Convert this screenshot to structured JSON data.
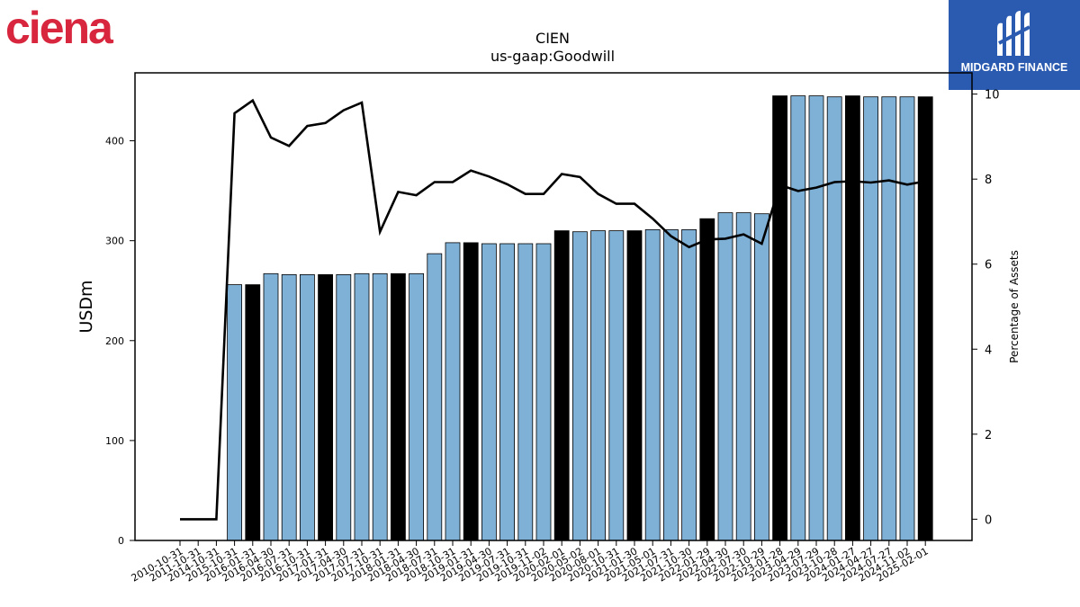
{
  "branding": {
    "company_logo_text": "ciena",
    "company_logo_color": "#d7263d",
    "publisher_logo_text": "MIDGARD FINANCE",
    "publisher_logo_color": "#2b5bb0"
  },
  "chart_data": {
    "type": "bar",
    "title": "CIEN",
    "subtitle": "us-gaap:Goodwill",
    "ylabel": "USDm",
    "y2label": "Percentage of Assets",
    "ylim": [
      0,
      468
    ],
    "y2lim": [
      -0.5,
      10.5
    ],
    "yticks": [
      0,
      100,
      200,
      300,
      400
    ],
    "y2ticks": [
      0,
      2,
      4,
      6,
      8,
      10
    ],
    "colors": {
      "bar": "#7fb0d6",
      "bar_highlight": "#000000",
      "line": "#000000"
    },
    "categories": [
      "2010-10-31",
      "2011-10-31",
      "2014-10-31",
      "2015-10-31",
      "2016-01-31",
      "2016-04-30",
      "2016-07-31",
      "2016-10-31",
      "2017-01-31",
      "2017-04-30",
      "2017-07-31",
      "2017-10-31",
      "2018-01-31",
      "2018-04-30",
      "2018-07-31",
      "2018-10-31",
      "2019-01-31",
      "2019-04-30",
      "2019-07-31",
      "2019-10-31",
      "2019-11-02",
      "2020-02-01",
      "2020-05-02",
      "2020-08-01",
      "2020-10-31",
      "2021-01-30",
      "2021-05-01",
      "2021-07-31",
      "2021-10-30",
      "2022-01-29",
      "2022-04-30",
      "2022-07-30",
      "2022-10-29",
      "2023-01-28",
      "2023-04-29",
      "2023-07-29",
      "2023-10-28",
      "2024-01-27",
      "2024-04-27",
      "2024-07-27",
      "2024-11-02",
      "2025-02-01"
    ],
    "bar_values": [
      0,
      0,
      0,
      256,
      256,
      267,
      266,
      266,
      266,
      266,
      267,
      267,
      267,
      267,
      287,
      298,
      298,
      297,
      297,
      297,
      297,
      310,
      309,
      310,
      310,
      310,
      311,
      311,
      311,
      322,
      328,
      328,
      327,
      445,
      445,
      445,
      444,
      445,
      444,
      444,
      444,
      444
    ],
    "highlight": [
      false,
      false,
      false,
      false,
      true,
      false,
      false,
      false,
      true,
      false,
      false,
      false,
      true,
      false,
      false,
      false,
      true,
      false,
      false,
      false,
      false,
      true,
      false,
      false,
      false,
      true,
      false,
      false,
      false,
      true,
      false,
      false,
      false,
      true,
      false,
      false,
      false,
      true,
      false,
      false,
      false,
      true
    ],
    "pct_values": [
      0,
      0,
      0,
      9.55,
      9.85,
      8.98,
      8.78,
      9.25,
      9.32,
      9.62,
      9.8,
      6.76,
      7.7,
      7.62,
      7.93,
      7.93,
      8.2,
      8.06,
      7.88,
      7.65,
      7.65,
      8.12,
      8.05,
      7.65,
      7.42,
      7.42,
      7.07,
      6.66,
      6.4,
      6.58,
      6.6,
      6.7,
      6.48,
      7.86,
      7.72,
      7.8,
      7.93,
      7.95,
      7.92,
      7.97,
      7.87,
      7.95
    ]
  }
}
